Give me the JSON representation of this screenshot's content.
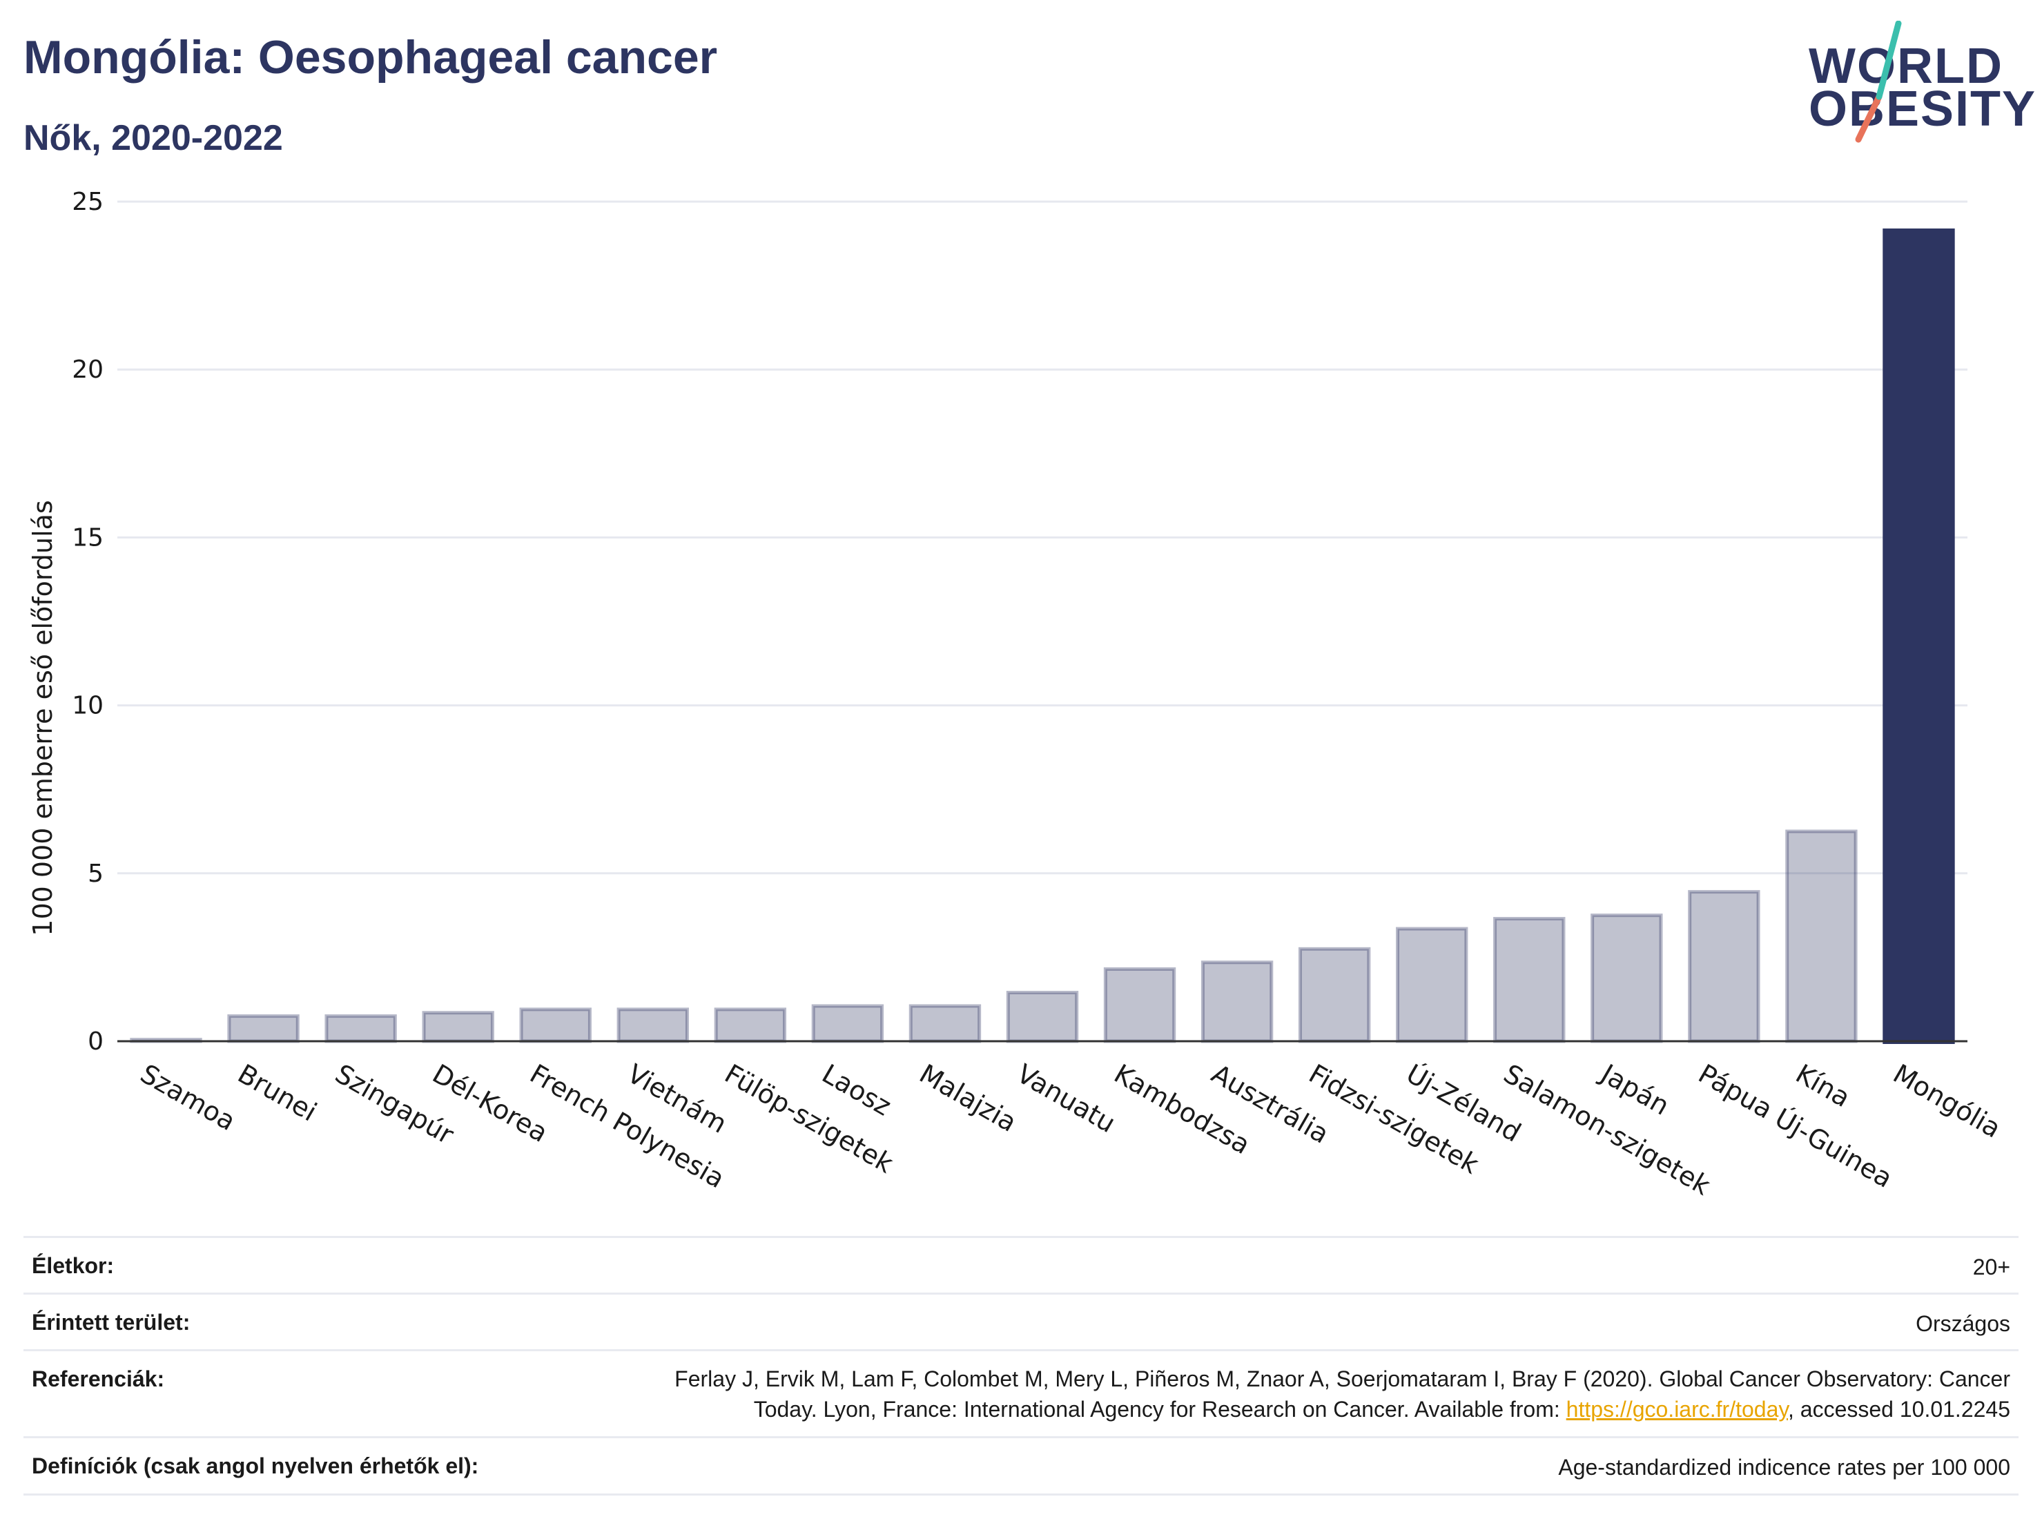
{
  "header": {
    "title": "Mongólia: Oesophageal cancer",
    "subtitle": "Nők, 2020-2022"
  },
  "logo": {
    "line1": "WORLD",
    "line2": "OBESITY",
    "colors": {
      "text": "#2d3561",
      "slash_top": "#3bbfad",
      "slash_bottom": "#e8735a"
    }
  },
  "chart_data": {
    "type": "bar",
    "title": "Mongólia: Oesophageal cancer",
    "subtitle": "Nők, 2020-2022",
    "ylabel": "100 000 emberre eső előfordulás",
    "xlabel": "",
    "ylim": [
      0,
      25
    ],
    "yticks": [
      0,
      5,
      10,
      15,
      20,
      25
    ],
    "grid": true,
    "highlight": "Mongólia",
    "colors": {
      "default": "#2d3561",
      "default_opacity": 0.3,
      "highlight": "#2d3561"
    },
    "categories": [
      "Szamoa",
      "Brunei",
      "Szingapúr",
      "Dél-Korea",
      "French Polynesia",
      "Vietnám",
      "Fülöp-szigetek",
      "Laosz",
      "Malajzia",
      "Vanuatu",
      "Kambodzsa",
      "Ausztrália",
      "Fidzsi-szigetek",
      "Új-Zéland",
      "Salamon-szigetek",
      "Japán",
      "Pápua Új-Guinea",
      "Kína",
      "Mongólia"
    ],
    "values": [
      0.1,
      0.8,
      0.8,
      0.9,
      1.0,
      1.0,
      1.0,
      1.1,
      1.1,
      1.5,
      2.2,
      2.4,
      2.8,
      3.4,
      3.7,
      3.8,
      4.5,
      6.3,
      24.2
    ]
  },
  "meta": {
    "age": {
      "label": "Életkor:",
      "value": "20+"
    },
    "area": {
      "label": "Érintett terület:",
      "value": "Országos"
    },
    "refs": {
      "label": "Referenciák:",
      "line1": "Ferlay J, Ervik M, Lam F, Colombet M, Mery L, Piñeros M, Znaor A, Soerjomataram I, Bray F (2020). Global Cancer Observatory: Cancer",
      "line2_pre": "Today. Lyon, France: International Agency for Research on Cancer. Available from: ",
      "link": "https://gco.iarc.fr/today",
      "line2_post": ", accessed 10.01.2245"
    },
    "defs": {
      "label": "Definíciók (csak angol nyelven érhetők el):",
      "value": "Age-standardized indicence rates per 100 000"
    }
  }
}
